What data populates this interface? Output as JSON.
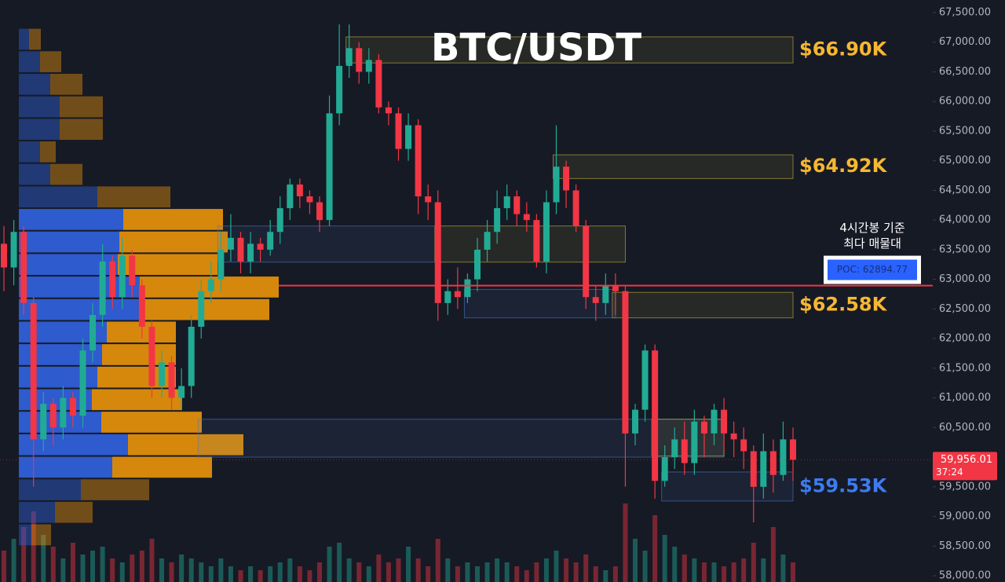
{
  "chart_data": {
    "type": "candlestick",
    "title": "BTC/USDT",
    "ylim": [
      57894,
      67712
    ],
    "yticks": [
      {
        "value": 58000,
        "label": "58,000.00"
      },
      {
        "value": 58500,
        "label": "58,500.00"
      },
      {
        "value": 59000,
        "label": "59,000.00"
      },
      {
        "value": 59500,
        "label": "59,500.00"
      },
      {
        "value": 60000,
        "label": "60,000.00"
      },
      {
        "value": 60500,
        "label": "60,500.00"
      },
      {
        "value": 61000,
        "label": "61,000.00"
      },
      {
        "value": 61500,
        "label": "61,500.00"
      },
      {
        "value": 62000,
        "label": "62,000.00"
      },
      {
        "value": 62500,
        "label": "62,500.00"
      },
      {
        "value": 63000,
        "label": "63,000.00"
      },
      {
        "value": 63500,
        "label": "63,500.00"
      },
      {
        "value": 64000,
        "label": "64,000.00"
      },
      {
        "value": 64500,
        "label": "64,500.00"
      },
      {
        "value": 65000,
        "label": "65,000.00"
      },
      {
        "value": 65500,
        "label": "65,500.00"
      },
      {
        "value": 66000,
        "label": "66,000.00"
      },
      {
        "value": 66500,
        "label": "66,500.00"
      },
      {
        "value": 67000,
        "label": "67,000.00"
      },
      {
        "value": 67500,
        "label": "67,500.00"
      }
    ],
    "up_color": "#22ab94",
    "down_color": "#f23645",
    "open": [
      63600,
      63200,
      63800,
      62600,
      60300,
      60900,
      60500,
      61000,
      60700,
      61800,
      62400,
      63300,
      62700,
      63400,
      62900,
      62200,
      61200,
      61600,
      61000,
      61200,
      62200,
      62800,
      63000,
      63500,
      63700,
      63300,
      63600,
      63500,
      63800,
      64200,
      64600,
      64400,
      64300,
      64000,
      65800,
      66600,
      66900,
      66500,
      66700,
      65900,
      65800,
      65200,
      65600,
      64400,
      64300,
      62600,
      62800,
      62700,
      63000,
      63500,
      63800,
      64200,
      64400,
      64100,
      64000,
      63300,
      64300,
      64900,
      64500,
      63900,
      62700,
      62600,
      62900,
      62800,
      60400,
      60800,
      61800,
      59600,
      60000,
      60300,
      59900,
      60600,
      60400,
      60800,
      60400,
      60300,
      60100,
      59500,
      60100,
      59700,
      60300
    ],
    "high": [
      63900,
      64000,
      63900,
      62700,
      61100,
      61000,
      61200,
      61100,
      62000,
      62600,
      63600,
      63400,
      63700,
      63500,
      63000,
      62300,
      61800,
      61700,
      61500,
      62400,
      63000,
      63300,
      63800,
      64100,
      63800,
      63800,
      63700,
      64000,
      64400,
      64700,
      64700,
      64500,
      64400,
      66100,
      67300,
      67300,
      67000,
      66900,
      66800,
      66000,
      65900,
      65800,
      65700,
      64600,
      64500,
      63000,
      63200,
      63100,
      63700,
      64000,
      64500,
      64600,
      64500,
      64300,
      64100,
      64500,
      65600,
      65000,
      64600,
      64000,
      62900,
      63100,
      63100,
      62900,
      60900,
      61900,
      61900,
      60200,
      60500,
      60600,
      60800,
      60700,
      60900,
      61000,
      60600,
      60500,
      60200,
      60400,
      60300,
      60600,
      60500
    ],
    "low": [
      62800,
      62900,
      62400,
      59500,
      60100,
      60200,
      60300,
      60500,
      60500,
      61600,
      62200,
      62500,
      62500,
      62700,
      62000,
      61000,
      61000,
      60800,
      60800,
      61000,
      62000,
      62600,
      62800,
      63300,
      63100,
      63100,
      63300,
      63400,
      63600,
      64000,
      64200,
      64100,
      63800,
      63900,
      65600,
      66400,
      66300,
      66300,
      65800,
      65600,
      65000,
      65000,
      64100,
      64000,
      62300,
      62400,
      62500,
      62600,
      62800,
      63300,
      63600,
      64000,
      63900,
      63800,
      63200,
      63100,
      64100,
      64200,
      63800,
      62500,
      62300,
      62400,
      62400,
      59500,
      60200,
      60600,
      59300,
      59500,
      59800,
      59700,
      59700,
      60000,
      60200,
      60100,
      60000,
      59800,
      58900,
      59300,
      59400,
      59600,
      59600
    ],
    "close": [
      63200,
      63800,
      62600,
      60300,
      60900,
      60500,
      61000,
      60700,
      61800,
      62400,
      63300,
      62700,
      63400,
      62900,
      62200,
      61200,
      61600,
      61000,
      61200,
      62200,
      62800,
      63000,
      63500,
      63700,
      63300,
      63600,
      63500,
      63800,
      64200,
      64600,
      64400,
      64300,
      64000,
      65800,
      66600,
      66900,
      66500,
      66700,
      65900,
      65800,
      65200,
      65600,
      64400,
      64300,
      62600,
      62800,
      62700,
      63000,
      63500,
      63800,
      64200,
      64400,
      64100,
      64000,
      63300,
      64300,
      64900,
      64500,
      63900,
      62700,
      62600,
      62900,
      62800,
      60400,
      60800,
      61800,
      59600,
      60000,
      60300,
      59900,
      60600,
      60400,
      60800,
      60400,
      60300,
      60100,
      59500,
      60100,
      59700,
      60300,
      59956.01
    ],
    "volume": [
      40,
      55,
      70,
      90,
      60,
      45,
      30,
      50,
      35,
      40,
      45,
      30,
      25,
      35,
      40,
      55,
      30,
      25,
      35,
      30,
      25,
      20,
      30,
      20,
      15,
      20,
      15,
      20,
      25,
      30,
      20,
      15,
      25,
      45,
      50,
      30,
      25,
      20,
      35,
      25,
      30,
      45,
      30,
      20,
      55,
      30,
      20,
      25,
      20,
      25,
      30,
      25,
      20,
      15,
      25,
      30,
      40,
      30,
      25,
      35,
      20,
      15,
      20,
      100,
      55,
      40,
      85,
      60,
      45,
      35,
      30,
      25,
      25,
      20,
      25,
      30,
      50,
      30,
      70,
      35,
      25
    ],
    "volume_profile": {
      "bins": [
        58500,
        58880,
        59260,
        59640,
        60020,
        60400,
        60780,
        61160,
        61540,
        61920,
        62300,
        62680,
        63060,
        63440,
        63820,
        64200,
        64580,
        64960,
        65340,
        65720,
        66100,
        66480,
        66860,
        67240
      ],
      "buy": [
        16,
        46,
        79,
        119,
        139,
        105,
        93,
        100,
        106,
        112,
        153,
        154,
        126,
        128,
        133,
        100,
        40,
        27,
        52,
        52,
        40,
        27,
        13
      ],
      "sell": [
        25,
        48,
        87,
        127,
        147,
        128,
        115,
        100,
        94,
        88,
        166,
        177,
        127,
        138,
        127,
        93,
        41,
        20,
        55,
        55,
        41,
        27,
        15
      ],
      "buy_color": "#2f5fd6",
      "sell_color": "#e08e0b",
      "value_area": [
        59640,
        64200
      ]
    },
    "zones": [
      {
        "from": 35,
        "to": 80,
        "low": 66650,
        "high": 67090,
        "color": "#c9b43c",
        "label": "$66.90K",
        "label_color": "#f7b731"
      },
      {
        "from": 56,
        "to": 80,
        "low": 64700,
        "high": 65100,
        "color": "#c9b43c",
        "label": "$64.92K",
        "label_color": "#f7b731"
      },
      {
        "from": 62,
        "to": 80,
        "low": 62350,
        "high": 62780,
        "color": "#c9b43c",
        "label": "$62.58K",
        "label_color": "#f7b731"
      },
      {
        "from": 44,
        "to": 63,
        "low": 63290,
        "high": 63900,
        "color": "#c9b43c"
      },
      {
        "from": 22,
        "to": 44,
        "low": 63290,
        "high": 63900,
        "color": "#4a78c8"
      },
      {
        "from": 47,
        "to": 62,
        "low": 62350,
        "high": 62830,
        "color": "#4a78c8"
      },
      {
        "from": 20,
        "to": 73,
        "low": 60000,
        "high": 60640,
        "color": "#4a78c8"
      },
      {
        "from": 66,
        "to": 73,
        "low": 60020,
        "high": 60640,
        "color": "#c9b43c"
      },
      {
        "from": 67,
        "to": 80,
        "low": 59260,
        "high": 59750,
        "color": "#4a78c8",
        "label": "$59.53K",
        "label_color": "#3d7bf0"
      }
    ],
    "poc": {
      "value": 62894.77,
      "label": "POC: 62894.77",
      "note": [
        "4시간봉 기준",
        "최다 매물대"
      ],
      "color": "#f23645"
    },
    "last_price": {
      "value": 59956.01,
      "label": "59,956.01",
      "countdown": "37:24"
    }
  }
}
